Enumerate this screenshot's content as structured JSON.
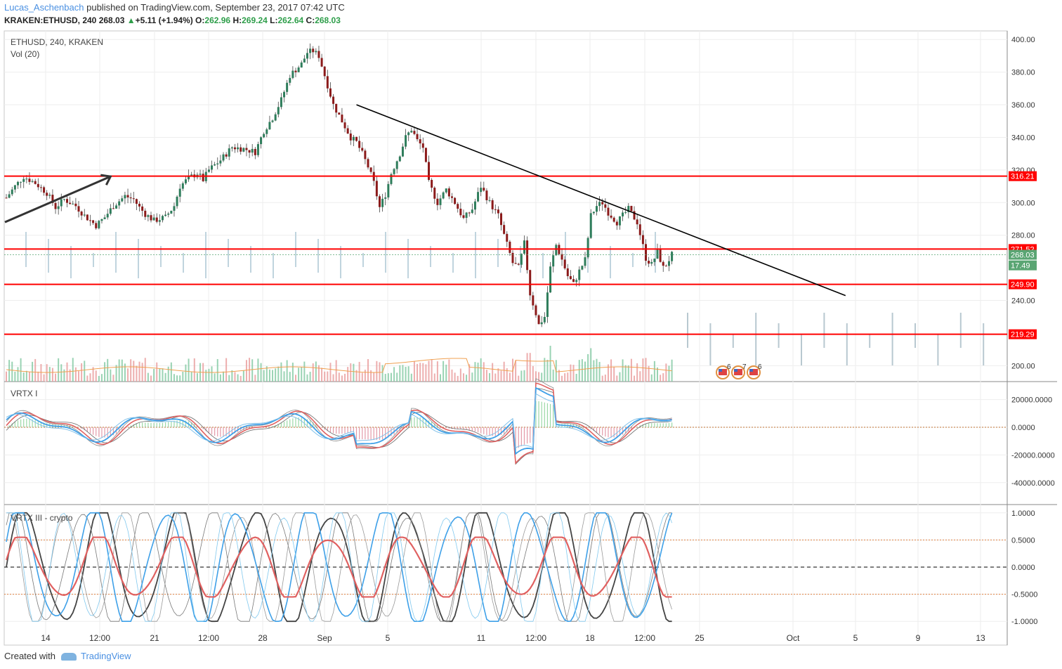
{
  "header": {
    "author": "Lucas_Aschenbach",
    "published": "published on TradingView.com, September 23, 2017 07:42 UTC",
    "symbol": "KRAKEN:ETHUSD, 240",
    "last": "268.03",
    "change": "+5.11 (+1.94%)",
    "o_label": "O:",
    "o": "262.96",
    "h_label": "H:",
    "h": "269.24",
    "l_label": "L:",
    "l": "262.64",
    "c_label": "C:",
    "c": "268.03"
  },
  "footer": {
    "created": "Created with",
    "brand": "TradingView"
  },
  "colors": {
    "up": "#2e7d5b",
    "down": "#8b1a1a",
    "level": "#ff0000",
    "trend": "#000000",
    "accent": "#4a90e2"
  },
  "chart_data": [
    {
      "type": "candlestick",
      "title": "ETHUSD, 240, KRAKEN",
      "subtitle": "Vol (20)",
      "ylim": [
        190,
        405
      ],
      "y_ticks": [
        "400.00",
        "380.00",
        "360.00",
        "340.00",
        "320.00",
        "300.00",
        "280.00",
        "240.00",
        "200.00"
      ],
      "y_tick_values": [
        400,
        380,
        360,
        340,
        320,
        300,
        280,
        240,
        200
      ],
      "x_ticks": [
        "14",
        "12:00",
        "21",
        "12:00",
        "28",
        "Sep",
        "5",
        "11",
        "12:00",
        "18",
        "12:00",
        "25",
        "Oct",
        "5",
        "9",
        "13"
      ],
      "close_path": [
        [
          0,
          303
        ],
        [
          3,
          310
        ],
        [
          6,
          316
        ],
        [
          10,
          312
        ],
        [
          14,
          306
        ],
        [
          17,
          297
        ],
        [
          20,
          302
        ],
        [
          24,
          298
        ],
        [
          27,
          292
        ],
        [
          31,
          286
        ],
        [
          34,
          291
        ],
        [
          37,
          298
        ],
        [
          41,
          304
        ],
        [
          44,
          302
        ],
        [
          46,
          297
        ],
        [
          48,
          293
        ],
        [
          51,
          289
        ],
        [
          55,
          291
        ],
        [
          58,
          298
        ],
        [
          60,
          310
        ],
        [
          63,
          315
        ],
        [
          66,
          318
        ],
        [
          68,
          314
        ],
        [
          70,
          320
        ],
        [
          74,
          326
        ],
        [
          78,
          334
        ],
        [
          82,
          333
        ],
        [
          86,
          331
        ],
        [
          89,
          344
        ],
        [
          92,
          352
        ],
        [
          95,
          363
        ],
        [
          98,
          378
        ],
        [
          102,
          385
        ],
        [
          104,
          392
        ],
        [
          106,
          393
        ],
        [
          108,
          390
        ],
        [
          110,
          378
        ],
        [
          113,
          360
        ],
        [
          116,
          350
        ],
        [
          119,
          340
        ],
        [
          121,
          337
        ],
        [
          123,
          330
        ],
        [
          125,
          322
        ],
        [
          127,
          312
        ],
        [
          129,
          297
        ],
        [
          131,
          305
        ],
        [
          133,
          318
        ],
        [
          136,
          330
        ],
        [
          138,
          340
        ],
        [
          140,
          345
        ],
        [
          142,
          338
        ],
        [
          144,
          334
        ],
        [
          146,
          312
        ],
        [
          149,
          300
        ],
        [
          152,
          308
        ],
        [
          155,
          300
        ],
        [
          158,
          290
        ],
        [
          161,
          296
        ],
        [
          164,
          310
        ],
        [
          167,
          300
        ],
        [
          170,
          292
        ],
        [
          172,
          280
        ],
        [
          175,
          263
        ],
        [
          177,
          260
        ],
        [
          179,
          275
        ],
        [
          181,
          244
        ],
        [
          183,
          232
        ],
        [
          184,
          225
        ],
        [
          186,
          230
        ],
        [
          188,
          260
        ],
        [
          190,
          274
        ],
        [
          192,
          265
        ],
        [
          194,
          255
        ],
        [
          196,
          250
        ],
        [
          198,
          258
        ],
        [
          200,
          265
        ],
        [
          202,
          292
        ],
        [
          204,
          298
        ],
        [
          206,
          300
        ],
        [
          208,
          294
        ],
        [
          211,
          288
        ],
        [
          213,
          292
        ],
        [
          215,
          296
        ],
        [
          218,
          288
        ],
        [
          221,
          266
        ],
        [
          223,
          262
        ],
        [
          225,
          270
        ],
        [
          227,
          260
        ],
        [
          228,
          262
        ],
        [
          230,
          268
        ]
      ],
      "last_price": "268.03",
      "badges": [
        {
          "label": "316.21",
          "value": 316.21,
          "color": "#ff0000"
        },
        {
          "label": "271.52",
          "value": 271.52,
          "color": "#ff0000"
        },
        {
          "label": "268.03",
          "value": 268.03,
          "color": "#5aa573"
        },
        {
          "label": "17.49",
          "value": 261.5,
          "color": "#5aa573"
        },
        {
          "label": "249.90",
          "value": 249.9,
          "color": "#ff0000"
        },
        {
          "label": "219.29",
          "value": 219.29,
          "color": "#ff0000"
        }
      ],
      "horizontal_levels": [
        316.21,
        271.52,
        249.9,
        219.29
      ],
      "trendline": [
        [
          121,
          360
        ],
        [
          290,
          243
        ]
      ],
      "arrow": [
        [
          0,
          288
        ],
        [
          36,
          316
        ]
      ],
      "events": [
        "6",
        "7",
        "6"
      ]
    },
    {
      "type": "line",
      "title": "VRTX I",
      "ylim": [
        -52000,
        30000
      ],
      "y_ticks": [
        "20000.0000",
        "0.0000",
        "-20000.0000",
        "-40000.0000"
      ],
      "y_tick_values": [
        20000,
        0,
        -20000,
        -40000
      ]
    },
    {
      "type": "line",
      "title": "VRTX III - crypto",
      "ylim": [
        -1.12,
        1.12
      ],
      "y_ticks": [
        "1.0000",
        "0.5000",
        "0.0000",
        "-0.5000",
        "-1.0000"
      ],
      "y_tick_values": [
        1,
        0.5,
        0,
        -0.5,
        -1
      ],
      "reference_lines": [
        0.5,
        0,
        -0.5
      ]
    }
  ]
}
